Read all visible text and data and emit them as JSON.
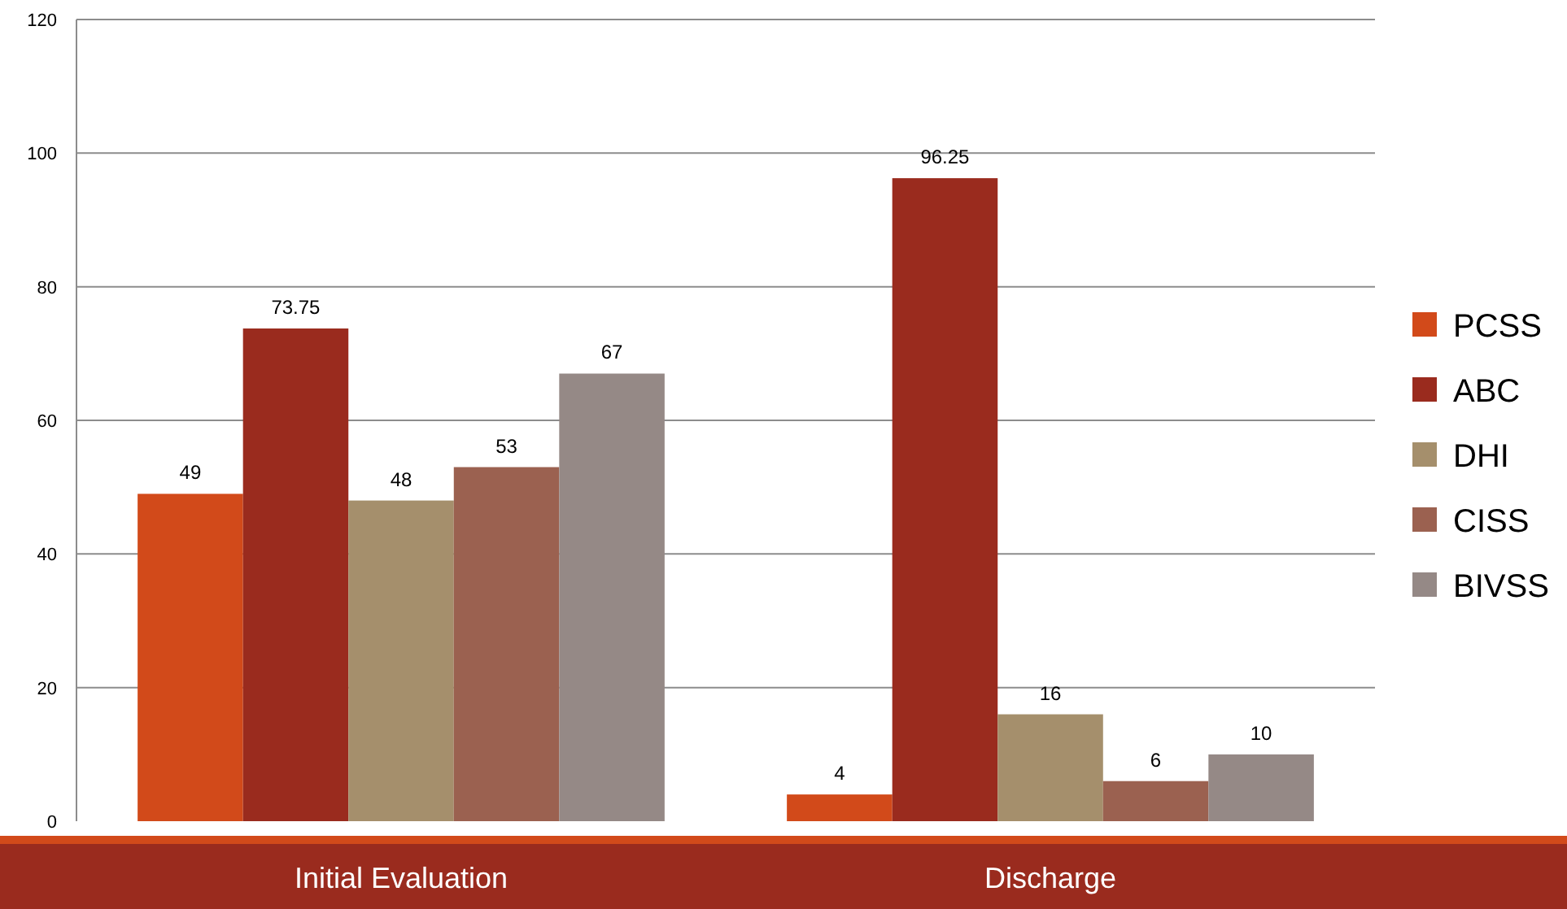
{
  "chart_data": {
    "type": "bar",
    "categories": [
      "Initial Evaluation",
      "Discharge"
    ],
    "series": [
      {
        "name": "PCSS",
        "color": "#d24a1a",
        "values": [
          49,
          4
        ]
      },
      {
        "name": "ABC",
        "color": "#9a2b1e",
        "values": [
          73.75,
          96.25
        ]
      },
      {
        "name": "DHI",
        "color": "#a58f6c",
        "values": [
          48,
          16
        ]
      },
      {
        "name": "CISS",
        "color": "#9b6150",
        "values": [
          53,
          6
        ]
      },
      {
        "name": "BIVSS",
        "color": "#958986",
        "values": [
          67,
          10
        ]
      }
    ],
    "ylim": [
      0,
      120
    ],
    "yticks": [
      0,
      20,
      40,
      60,
      80,
      100,
      120
    ],
    "grid": "y",
    "legend": "right",
    "data_labels": true
  }
}
